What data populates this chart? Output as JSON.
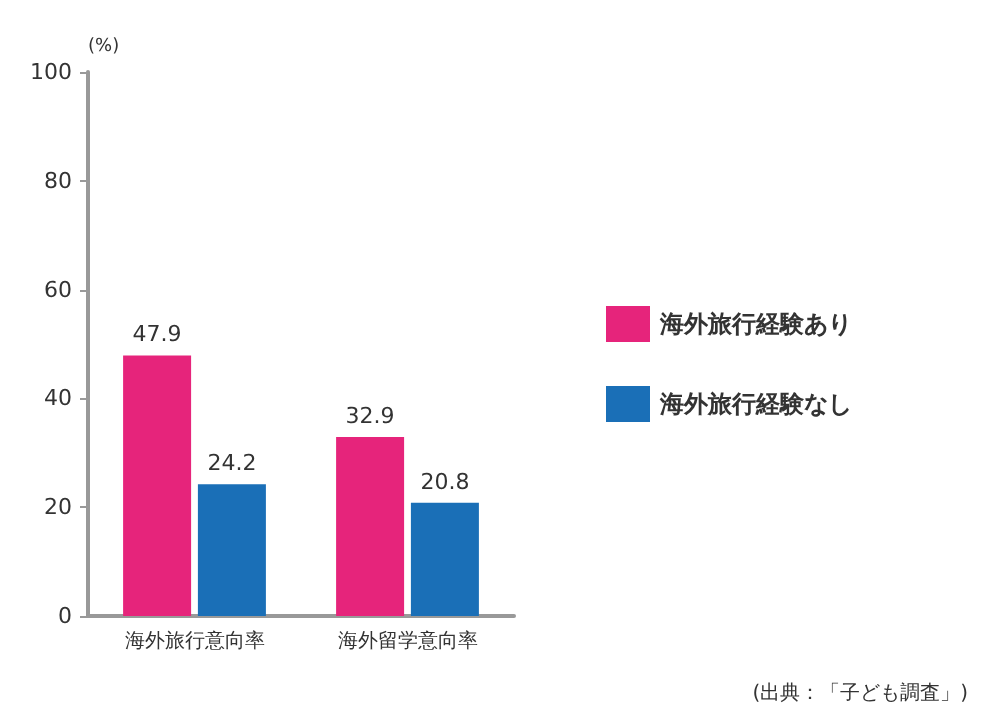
{
  "chart_data": {
    "type": "bar",
    "ylabel": "(%)",
    "categories": [
      "海外旅行意向率",
      "海外留学意向率"
    ],
    "series": [
      {
        "name": "海外旅行経験あり",
        "color": "#e6247b",
        "values": [
          47.9,
          32.9
        ]
      },
      {
        "name": "海外旅行経験なし",
        "color": "#1a6fb7",
        "values": [
          24.2,
          20.8
        ]
      }
    ],
    "ylim": [
      0,
      100
    ],
    "yticks": [
      0,
      20,
      40,
      60,
      80,
      100
    ],
    "grid": false,
    "legend": "right",
    "data_labels": true,
    "annotations": [
      "(出典：「子ども調査」)"
    ]
  }
}
